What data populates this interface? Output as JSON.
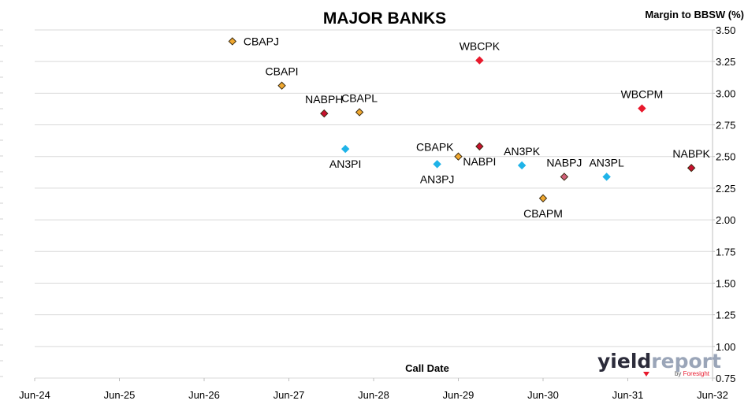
{
  "chart_data": {
    "type": "scatter",
    "title": "MAJOR BANKS",
    "ylabel": "Margin to BBSW (%)",
    "xlabel": "Call Date",
    "ylim": [
      0.75,
      3.5
    ],
    "y_ticks": [
      "0.75",
      "1.00",
      "1.25",
      "1.50",
      "1.75",
      "2.00",
      "2.25",
      "2.50",
      "2.75",
      "3.00",
      "3.25",
      "3.50"
    ],
    "y_tick_values": [
      0.75,
      1.0,
      1.25,
      1.5,
      1.75,
      2.0,
      2.25,
      2.5,
      2.75,
      3.0,
      3.25,
      3.5
    ],
    "xlim": [
      "2024-06",
      "2032-06"
    ],
    "x_ticks": [
      "Jun-24",
      "Jun-25",
      "Jun-26",
      "Jun-27",
      "Jun-28",
      "Jun-29",
      "Jun-30",
      "Jun-31",
      "Jun-32"
    ],
    "x_tick_values": [
      "2024-06",
      "2025-06",
      "2026-06",
      "2027-06",
      "2028-06",
      "2029-06",
      "2030-06",
      "2031-06",
      "2032-06"
    ],
    "y_axis_position": "right",
    "grid": "horizontal",
    "points": [
      {
        "label": "CBAPJ",
        "x": "2026-10",
        "y": 3.41,
        "color": "#f0a830",
        "label_pos": "right"
      },
      {
        "label": "CBAPI",
        "x": "2027-05",
        "y": 3.06,
        "color": "#f0a830",
        "label_pos": "above"
      },
      {
        "label": "NABPH",
        "x": "2027-11",
        "y": 2.84,
        "color": "#c8102e",
        "label_pos": "above"
      },
      {
        "label": "CBAPL",
        "x": "2028-04",
        "y": 2.85,
        "color": "#f0a830",
        "label_pos": "above"
      },
      {
        "label": "AN3PI",
        "x": "2028-02",
        "y": 2.56,
        "color": "#1fb3e8",
        "label_pos": "below"
      },
      {
        "label": "CBAPK",
        "x": "2029-06",
        "y": 2.5,
        "color": "#f0a830",
        "label_pos": "above-left"
      },
      {
        "label": "AN3PJ",
        "x": "2029-03",
        "y": 2.44,
        "color": "#1fb3e8",
        "label_pos": "below"
      },
      {
        "label": "NABPI",
        "x": "2029-09",
        "y": 2.58,
        "color": "#c8102e",
        "label_pos": "below"
      },
      {
        "label": "WBCPK",
        "x": "2029-09",
        "y": 3.26,
        "color": "#e8192c",
        "label_pos": "above"
      },
      {
        "label": "AN3PK",
        "x": "2030-03",
        "y": 2.43,
        "color": "#1fb3e8",
        "label_pos": "above"
      },
      {
        "label": "CBAPM",
        "x": "2030-06",
        "y": 2.17,
        "color": "#f0a830",
        "label_pos": "below"
      },
      {
        "label": "NABPJ",
        "x": "2030-09",
        "y": 2.34,
        "color": "#d0607a",
        "label_pos": "above"
      },
      {
        "label": "AN3PL",
        "x": "2031-03",
        "y": 2.34,
        "color": "#1fb3e8",
        "label_pos": "above"
      },
      {
        "label": "WBCPM",
        "x": "2031-08",
        "y": 2.88,
        "color": "#e8192c",
        "label_pos": "above"
      },
      {
        "label": "NABPK",
        "x": "2032-03",
        "y": 2.41,
        "color": "#c8102e",
        "label_pos": "above"
      }
    ]
  },
  "logo": {
    "word_a": "yield",
    "word_b": "report",
    "byline_a": "by ",
    "byline_b": "Foresight",
    "color_a": "#2b2b3a",
    "color_b": "#9aa5b8",
    "color_by": "#e8192c"
  }
}
